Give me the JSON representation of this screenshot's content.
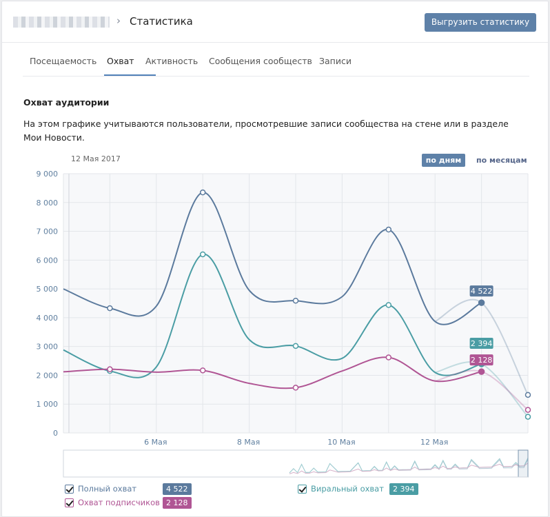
{
  "header": {
    "title": "Статистика",
    "export_label": "Выгрузить статистику"
  },
  "tabs": [
    {
      "label": "Посещаемость"
    },
    {
      "label": "Охват"
    },
    {
      "label": "Активность"
    },
    {
      "label": "Сообщения сообществ"
    },
    {
      "label": "Записи"
    }
  ],
  "section": {
    "title": "Охват аудитории",
    "description": "На этом графике учитываются пользователи, просмотревшие записи сообщества на стене или в разделе Мои Новости."
  },
  "chart_controls": {
    "current_date": "12 Мая 2017",
    "by_days": "по дням",
    "by_months": "по месяцам"
  },
  "legend": {
    "full": {
      "label": "Полный охват",
      "value": "4 522",
      "color": "#5b7a9d"
    },
    "viral": {
      "label": "Виральный охват",
      "value": "2 394",
      "color": "#4a9da4"
    },
    "subs": {
      "label": "Охват подписчиков",
      "value": "2 128",
      "color": "#b05594"
    }
  },
  "chart_data": {
    "type": "line",
    "x": [
      "4 Мая",
      "5 Мая",
      "6 Мая",
      "7 Мая",
      "8 Мая",
      "9 Мая",
      "10 Мая",
      "11 Мая",
      "12 Мая",
      "13 Мая",
      "14 Мая"
    ],
    "x_ticks": [
      "6 Мая",
      "8 Мая",
      "10 Мая",
      "12 Мая"
    ],
    "ylim": [
      0,
      9000
    ],
    "y_ticks": [
      "0",
      "1 000",
      "2 000",
      "3 000",
      "4 000",
      "5 000",
      "6 000",
      "7 000",
      "8 000",
      "9 000"
    ],
    "grid": true,
    "series": [
      {
        "name": "Полный охват",
        "color": "#5b7a9d",
        "values": [
          5000,
          4330,
          4400,
          8350,
          4950,
          4590,
          4730,
          7060,
          3870,
          4522,
          1320
        ]
      },
      {
        "name": "Виральный охват",
        "color": "#4a9da4",
        "values": [
          2880,
          2150,
          2290,
          6200,
          3240,
          3020,
          2590,
          4440,
          2100,
          2394,
          560
        ]
      },
      {
        "name": "Охват подписчиков",
        "color": "#b05594",
        "values": [
          2120,
          2210,
          2110,
          2170,
          1720,
          1570,
          2150,
          2620,
          1800,
          2128,
          800
        ]
      }
    ],
    "highlight_index": 9,
    "highlight_labels": [
      "4 522",
      "2 394",
      "2 128"
    ]
  }
}
